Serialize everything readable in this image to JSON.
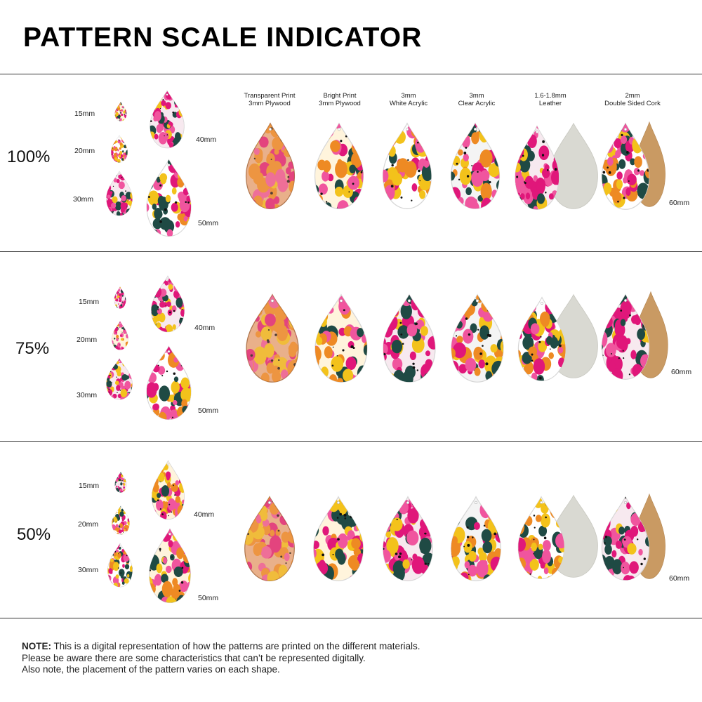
{
  "title": "PATTERN SCALE INDICATOR",
  "colors": {
    "magenta": "#e0177a",
    "pink": "#f0559e",
    "yellow": "#f3c21b",
    "orange": "#ee8a23",
    "darkgreen": "#1f4a44",
    "leather": "#d9d9d2",
    "cork": "#c99a63",
    "wood": "#d8a47a"
  },
  "materials": [
    {
      "line1": "Transparent Print",
      "line2": "3mm Plywood"
    },
    {
      "line1": "Bright Print",
      "line2": "3mm Plywood"
    },
    {
      "line1": "3mm",
      "line2": "White Acrylic"
    },
    {
      "line1": "3mm",
      "line2": "Clear Acrylic"
    },
    {
      "line1": "1.6-1.8mm",
      "line2": "Leather"
    },
    {
      "line1": "2mm",
      "line2": "Double Sided Cork"
    }
  ],
  "sections": [
    {
      "scale": "100%",
      "sizes": {
        "s15": "15mm",
        "s20": "20mm",
        "s30": "30mm",
        "s40": "40mm",
        "s50": "50mm",
        "s60": "60mm"
      }
    },
    {
      "scale": "75%",
      "sizes": {
        "s15": "15mm",
        "s20": "20mm",
        "s30": "30mm",
        "s40": "40mm",
        "s50": "50mm",
        "s60": "60mm"
      }
    },
    {
      "scale": "50%",
      "sizes": {
        "s15": "15mm",
        "s20": "20mm",
        "s30": "30mm",
        "s40": "40mm",
        "s50": "50mm",
        "s60": "60mm"
      }
    }
  ],
  "note": {
    "bold": "NOTE:",
    "line1": " This is a digital representation of how the patterns are printed on the different materials.",
    "line2": "Please be aware there are some characteristics that can’t be represented digitally.",
    "line3": "Also note, the placement of the pattern varies on each shape."
  }
}
